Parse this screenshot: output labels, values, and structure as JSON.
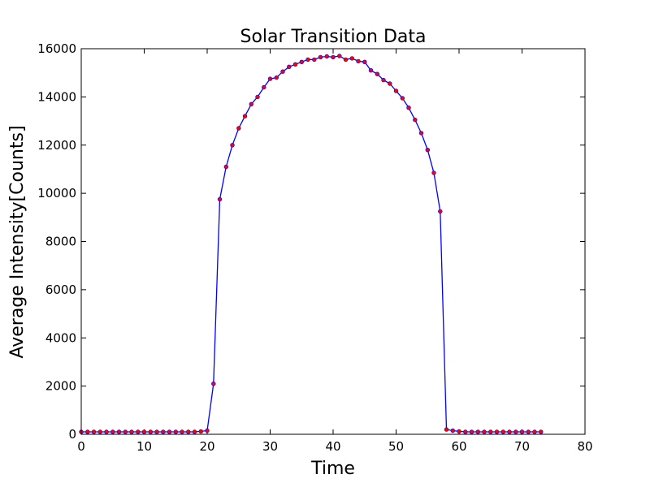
{
  "chart_data": {
    "type": "line",
    "title": "Solar Transition Data",
    "xlabel": "Time",
    "ylabel": "Average Intensity[Counts]",
    "xlim": [
      0,
      80
    ],
    "ylim": [
      0,
      16000
    ],
    "xticks": [
      0,
      10,
      20,
      30,
      40,
      50,
      60,
      70,
      80
    ],
    "yticks": [
      0,
      2000,
      4000,
      6000,
      8000,
      10000,
      12000,
      14000,
      16000
    ],
    "grid": false,
    "legend": "none",
    "line_color": "#0000ff",
    "marker_color": "#ff0000",
    "series": [
      {
        "x": [
          0,
          1,
          2,
          3,
          4,
          5,
          6,
          7,
          8,
          9,
          10,
          11,
          12,
          13,
          14,
          15,
          16,
          17,
          18,
          19,
          20,
          21,
          22,
          23,
          24,
          25,
          26,
          27,
          28,
          29,
          30,
          31,
          32,
          33,
          34,
          35,
          36,
          37,
          38,
          39,
          40,
          41,
          42,
          43,
          44,
          45,
          46,
          47,
          48,
          49,
          50,
          51,
          52,
          53,
          54,
          55,
          56,
          57,
          58,
          59,
          60,
          61,
          62,
          63,
          64,
          65,
          66,
          67,
          68,
          69,
          70,
          71,
          72,
          73
        ],
        "y": [
          100,
          100,
          100,
          100,
          100,
          100,
          100,
          100,
          100,
          100,
          100,
          100,
          100,
          100,
          100,
          100,
          100,
          100,
          100,
          120,
          150,
          2100,
          9750,
          11100,
          12000,
          12700,
          13200,
          13700,
          14000,
          14400,
          14750,
          14800,
          15050,
          15250,
          15350,
          15450,
          15550,
          15550,
          15650,
          15680,
          15650,
          15700,
          15550,
          15600,
          15480,
          15450,
          15100,
          14950,
          14700,
          14550,
          14250,
          13950,
          13550,
          13050,
          12500,
          11800,
          10850,
          9250,
          200,
          150,
          120,
          100,
          100,
          100,
          100,
          100,
          100,
          100,
          100,
          100,
          100,
          100,
          100,
          100
        ]
      }
    ]
  }
}
